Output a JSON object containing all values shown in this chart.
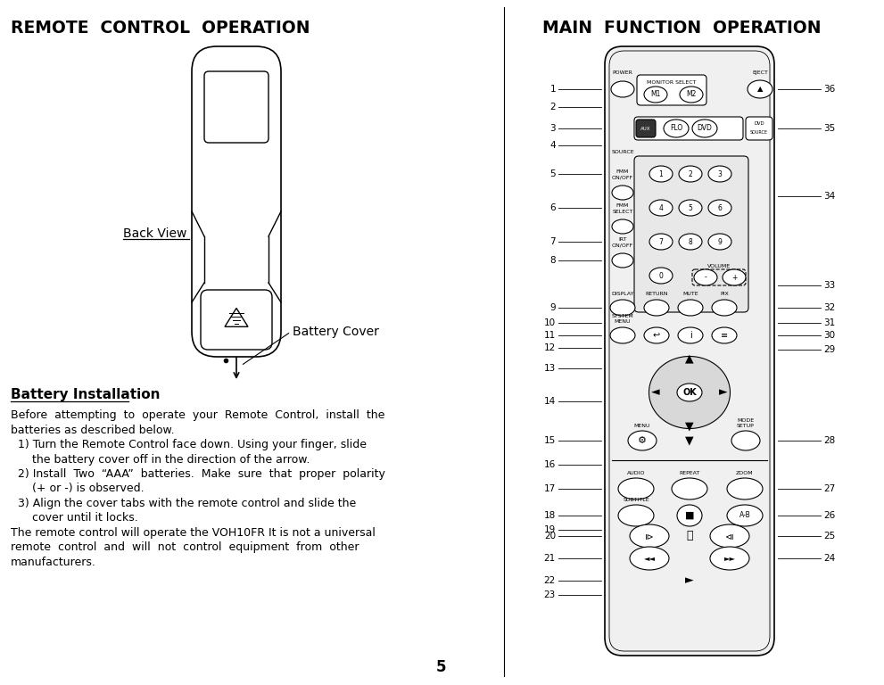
{
  "title_left": "REMOTE  CONTROL  OPERATION",
  "title_right": "MAIN  FUNCTION  OPERATION",
  "back_view_label": "Back View",
  "battery_cover_label": "Battery Cover",
  "section_title": "Battery Installation",
  "body_text": [
    "Before  attempting  to  operate  your  Remote  Control,  install  the",
    "batteries as described below.",
    "  1) Turn the Remote Control face down. Using your finger, slide",
    "      the battery cover off in the direction of the arrow.",
    "  2) Install  Two  “AAA”  batteries.  Make  sure  that  proper  polarity",
    "      (+ or -) is observed.",
    "  3) Align the cover tabs with the remote control and slide the",
    "      cover until it locks.",
    "The remote control will operate the VOH10FR It is not a universal",
    "remote  control  and  will  not  control  equipment  from  other",
    "manufacturers."
  ],
  "page_number": "5",
  "bg_color": "#ffffff",
  "line_color": "#000000"
}
